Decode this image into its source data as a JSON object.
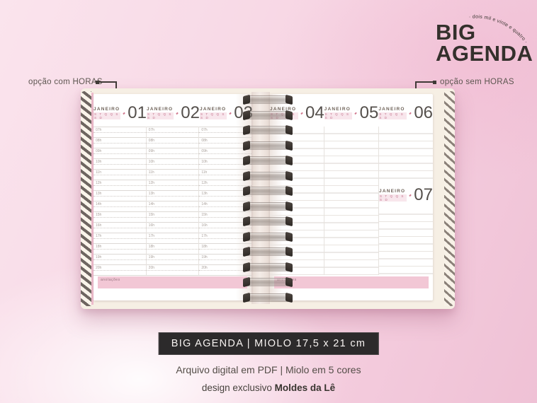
{
  "logo": {
    "title_line1": "BIG",
    "title_line2": "AGENDA",
    "arc_text": "· dois mil e vinte e quatro ·"
  },
  "callouts": {
    "left": "opção com HORAS",
    "right": "opção sem HORAS"
  },
  "planner": {
    "month_label": "JANEIRO",
    "weekday_initials": "S T Q Q S S D",
    "left_page": {
      "days": [
        "01",
        "02",
        "03"
      ],
      "hours": [
        "07h",
        "08h",
        "09h",
        "10h",
        "11h",
        "12h",
        "13h",
        "14h",
        "15h",
        "16h",
        "17h",
        "18h",
        "19h",
        "20h"
      ],
      "notes_label": "anotações"
    },
    "right_page": {
      "days": [
        "04",
        "05",
        "06"
      ],
      "overflow_day": "07",
      "notes_label": "anotações"
    },
    "spiral_coils": 14
  },
  "footer": {
    "badge": "BIG AGENDA | MIOLO 17,5 x 21 cm",
    "line1": "Arquivo digital em PDF | Miolo em 5 cores",
    "line2_prefix": "design exclusivo",
    "line2_bold": "Moldes da Lê"
  },
  "colors": {
    "background_pink": "#f3cadc",
    "accent_pink_bar": "#f2c7d5",
    "badge_bg": "#2c2a2b",
    "text_dark": "#34302c"
  }
}
